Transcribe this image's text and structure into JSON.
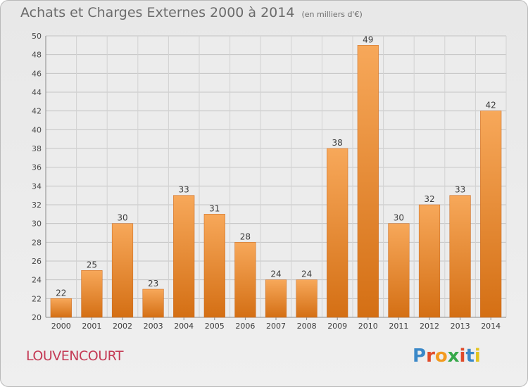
{
  "header": {
    "title": "Achats et Charges Externes 2000 à 2014",
    "subtitle": "(en milliers d'€)"
  },
  "footer": {
    "commune": "LOUVENCOURT",
    "logo_text": "Proxiti"
  },
  "colors": {
    "bar": "#f0882a",
    "bar_light": "#f7a85a",
    "bar_dark": "#d46f14",
    "logo_letters": [
      "#3a88c8",
      "#e04b2a",
      "#f39a1e",
      "#36a84a",
      "#e04b2a",
      "#3a88c8",
      "#e2c41e"
    ]
  },
  "chart_data": {
    "type": "bar",
    "title": "Achats et Charges Externes 2000 à 2014",
    "subtitle": "(en milliers d'€)",
    "categories": [
      "2000",
      "2001",
      "2002",
      "2003",
      "2004",
      "2005",
      "2006",
      "2007",
      "2008",
      "2009",
      "2010",
      "2011",
      "2012",
      "2013",
      "2014"
    ],
    "values": [
      22,
      25,
      30,
      23,
      33,
      31,
      28,
      24,
      24,
      38,
      49,
      30,
      32,
      33,
      42
    ],
    "ylim": [
      20,
      50
    ],
    "yticks": [
      20,
      22,
      24,
      26,
      28,
      30,
      32,
      34,
      36,
      38,
      40,
      42,
      44,
      46,
      48,
      50
    ],
    "grid": true,
    "data_labels": true
  }
}
